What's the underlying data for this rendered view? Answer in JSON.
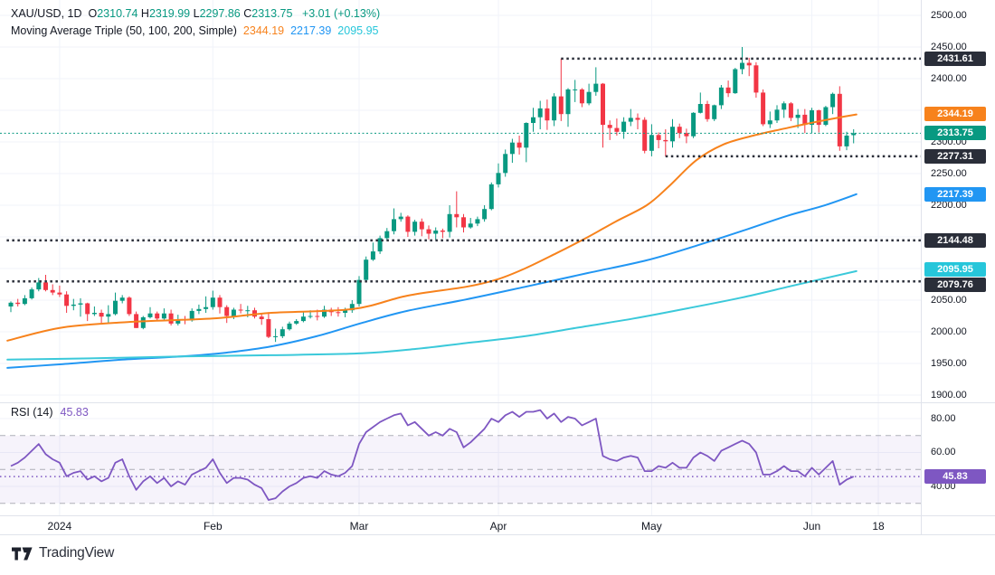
{
  "header": {
    "title": "XAU/USD, 1D",
    "ohlc": [
      {
        "k": "O",
        "v": "2310.74"
      },
      {
        "k": "H",
        "v": "2319.99"
      },
      {
        "k": "L",
        "v": "2297.86"
      },
      {
        "k": "C",
        "v": "2313.75"
      }
    ],
    "change": "+3.01 (+0.13%)"
  },
  "ma_legend": {
    "title": "Moving Average Triple (50, 100, 200, Simple)",
    "values": [
      {
        "v": "2344.19",
        "color": "#F7821C"
      },
      {
        "v": "2217.39",
        "color": "#2196F3"
      },
      {
        "v": "2095.95",
        "color": "#26C6DA"
      }
    ]
  },
  "rsi_legend": {
    "title": "RSI (14)",
    "value": "45.83"
  },
  "price_axis": {
    "ticks": [
      {
        "label": "2500.00",
        "price": 2500
      },
      {
        "label": "2450.00",
        "price": 2450
      },
      {
        "label": "2400.00",
        "price": 2400
      },
      {
        "label": "2300.00",
        "price": 2300
      },
      {
        "label": "2250.00",
        "price": 2250
      },
      {
        "label": "2200.00",
        "price": 2200
      },
      {
        "label": "2050.00",
        "price": 2050
      },
      {
        "label": "2000.00",
        "price": 2000
      },
      {
        "label": "1950.00",
        "price": 1950
      },
      {
        "label": "1900.00",
        "price": 1900
      }
    ],
    "badges": [
      {
        "label": "2431.61",
        "price": 2431.61,
        "bg": "#2A2E39",
        "dy": 0
      },
      {
        "label": "2344.19",
        "price": 2344.19,
        "bg": "#F7821C",
        "dy": 0
      },
      {
        "label": "2313.75",
        "price": 2313.75,
        "bg": "#089981",
        "dy": 0
      },
      {
        "label": "2277.31",
        "price": 2277.31,
        "bg": "#2A2E39",
        "dy": 0
      },
      {
        "label": "2217.39",
        "price": 2217.39,
        "bg": "#2196F3",
        "dy": 0
      },
      {
        "label": "2144.48",
        "price": 2144.48,
        "bg": "#2A2E39",
        "dy": 0
      },
      {
        "label": "2095.95",
        "price": 2095.95,
        "bg": "#26C6DA",
        "dy": -2
      },
      {
        "label": "2079.76",
        "price": 2079.76,
        "bg": "#2A2E39",
        "dy": 4
      }
    ],
    "rsi_ticks": [
      {
        "label": "80.00",
        "value": 80
      },
      {
        "label": "60.00",
        "value": 60
      },
      {
        "label": "40.00",
        "value": 40
      }
    ],
    "rsi_badge": {
      "label": "45.83",
      "value": 45.83,
      "bg": "#7E57C2"
    }
  },
  "time_axis": {
    "labels": [
      {
        "label": "2024",
        "index": 7
      },
      {
        "label": "Feb",
        "index": 29
      },
      {
        "label": "Mar",
        "index": 50
      },
      {
        "label": "Apr",
        "index": 70
      },
      {
        "label": "May",
        "index": 92
      },
      {
        "label": "Jun",
        "index": 115
      },
      {
        "label": "18",
        "x": 971
      }
    ]
  },
  "footer": {
    "logo_text": "TradingView"
  },
  "chart_data": {
    "type": "candlestick",
    "symbol": "XAU/USD",
    "interval": "1D",
    "title": "XAU/USD daily with Moving Average Triple (50,100,200) and RSI(14)",
    "ylim": [
      1880,
      2524
    ],
    "price_gridlines": [
      1900,
      1950,
      2000,
      2050,
      2100,
      2150,
      2200,
      2250,
      2300,
      2350,
      2400,
      2450,
      2500
    ],
    "up_color": "#089981",
    "down_color": "#F23645",
    "candles": [
      [
        2040,
        2048,
        2031,
        2046
      ],
      [
        2046,
        2052,
        2040,
        2044
      ],
      [
        2044,
        2058,
        2042,
        2053
      ],
      [
        2053,
        2070,
        2051,
        2067
      ],
      [
        2067,
        2085,
        2064,
        2078
      ],
      [
        2078,
        2090,
        2064,
        2066
      ],
      [
        2066,
        2075,
        2058,
        2062
      ],
      [
        2062,
        2073,
        2055,
        2059
      ],
      [
        2059,
        2064,
        2030,
        2041
      ],
      [
        2041,
        2052,
        2034,
        2043
      ],
      [
        2043,
        2053,
        2024,
        2045
      ],
      [
        2045,
        2046,
        2017,
        2028
      ],
      [
        2028,
        2040,
        2025,
        2030
      ],
      [
        2030,
        2035,
        2014,
        2024
      ],
      [
        2024,
        2042,
        2013,
        2028
      ],
      [
        2028,
        2062,
        2026,
        2049
      ],
      [
        2049,
        2058,
        2045,
        2054
      ],
      [
        2054,
        2056,
        2025,
        2028
      ],
      [
        2028,
        2032,
        2006,
        2006
      ],
      [
        2006,
        2025,
        2004,
        2023
      ],
      [
        2023,
        2039,
        2021,
        2029
      ],
      [
        2029,
        2032,
        2017,
        2021
      ],
      [
        2021,
        2037,
        2019,
        2029
      ],
      [
        2029,
        2035,
        2010,
        2013
      ],
      [
        2013,
        2027,
        2010,
        2020
      ],
      [
        2020,
        2025,
        2012,
        2018
      ],
      [
        2018,
        2037,
        2016,
        2033
      ],
      [
        2033,
        2043,
        2028,
        2036
      ],
      [
        2036,
        2056,
        2030,
        2039
      ],
      [
        2039,
        2065,
        2035,
        2054
      ],
      [
        2054,
        2058,
        2029,
        2039
      ],
      [
        2039,
        2042,
        2014,
        2025
      ],
      [
        2025,
        2038,
        2020,
        2035
      ],
      [
        2035,
        2044,
        2029,
        2034
      ],
      [
        2034,
        2041,
        2023,
        2034
      ],
      [
        2034,
        2038,
        2021,
        2024
      ],
      [
        2024,
        2030,
        2011,
        2020
      ],
      [
        2020,
        2031,
        1990,
        1992
      ],
      [
        1992,
        2005,
        1984,
        1993
      ],
      [
        1993,
        2008,
        1990,
        2004
      ],
      [
        2004,
        2016,
        2002,
        2013
      ],
      [
        2013,
        2020,
        2011,
        2017
      ],
      [
        2017,
        2031,
        2015,
        2024
      ],
      [
        2024,
        2034,
        2021,
        2025
      ],
      [
        2025,
        2035,
        2018,
        2024
      ],
      [
        2024,
        2041,
        2022,
        2035
      ],
      [
        2035,
        2038,
        2025,
        2031
      ],
      [
        2031,
        2039,
        2024,
        2030
      ],
      [
        2030,
        2038,
        2023,
        2034
      ],
      [
        2034,
        2050,
        2030,
        2044
      ],
      [
        2044,
        2088,
        2040,
        2082
      ],
      [
        2082,
        2119,
        2079,
        2114
      ],
      [
        2114,
        2141,
        2112,
        2127
      ],
      [
        2127,
        2152,
        2123,
        2148
      ],
      [
        2148,
        2164,
        2144,
        2159
      ],
      [
        2159,
        2195,
        2154,
        2178
      ],
      [
        2178,
        2188,
        2174,
        2182
      ],
      [
        2182,
        2184,
        2150,
        2158
      ],
      [
        2158,
        2177,
        2152,
        2174
      ],
      [
        2174,
        2179,
        2151,
        2162
      ],
      [
        2162,
        2168,
        2146,
        2155
      ],
      [
        2155,
        2165,
        2145,
        2160
      ],
      [
        2160,
        2163,
        2148,
        2158
      ],
      [
        2158,
        2200,
        2149,
        2186
      ],
      [
        2186,
        2222,
        2165,
        2181
      ],
      [
        2181,
        2186,
        2157,
        2165
      ],
      [
        2165,
        2180,
        2163,
        2171
      ],
      [
        2171,
        2182,
        2167,
        2178
      ],
      [
        2178,
        2200,
        2174,
        2194
      ],
      [
        2194,
        2236,
        2192,
        2233
      ],
      [
        2233,
        2266,
        2228,
        2251
      ],
      [
        2251,
        2288,
        2245,
        2281
      ],
      [
        2281,
        2305,
        2267,
        2299
      ],
      [
        2299,
        2310,
        2280,
        2291
      ],
      [
        2291,
        2331,
        2268,
        2330
      ],
      [
        2330,
        2354,
        2316,
        2339
      ],
      [
        2339,
        2365,
        2320,
        2353
      ],
      [
        2353,
        2367,
        2319,
        2334
      ],
      [
        2334,
        2377,
        2325,
        2372
      ],
      [
        2372,
        2431.61,
        2333,
        2344
      ],
      [
        2344,
        2385,
        2324,
        2383
      ],
      [
        2383,
        2398,
        2363,
        2383
      ],
      [
        2383,
        2385,
        2355,
        2361
      ],
      [
        2361,
        2392,
        2358,
        2379
      ],
      [
        2379,
        2418,
        2373,
        2392
      ],
      [
        2392,
        2393,
        2291,
        2327
      ],
      [
        2327,
        2334,
        2303,
        2322
      ],
      [
        2322,
        2337,
        2310,
        2316
      ],
      [
        2316,
        2339,
        2305,
        2332
      ],
      [
        2332,
        2352,
        2325,
        2338
      ],
      [
        2338,
        2345,
        2320,
        2335
      ],
      [
        2335,
        2339,
        2282,
        2286
      ],
      [
        2286,
        2328,
        2277.31,
        2311
      ],
      [
        2311,
        2315,
        2290,
        2303
      ],
      [
        2303,
        2320,
        2277,
        2301
      ],
      [
        2301,
        2336,
        2291,
        2324
      ],
      [
        2324,
        2329,
        2306,
        2314
      ],
      [
        2314,
        2321,
        2298,
        2309
      ],
      [
        2309,
        2347,
        2306,
        2346
      ],
      [
        2346,
        2378,
        2345,
        2360
      ],
      [
        2360,
        2365,
        2332,
        2336
      ],
      [
        2336,
        2359,
        2333,
        2358
      ],
      [
        2358,
        2390,
        2352,
        2386
      ],
      [
        2386,
        2397,
        2371,
        2377
      ],
      [
        2377,
        2417,
        2376,
        2415
      ],
      [
        2415,
        2450,
        2407,
        2425
      ],
      [
        2425,
        2433,
        2404,
        2421
      ],
      [
        2421,
        2426,
        2370,
        2378
      ],
      [
        2378,
        2383,
        2325,
        2328
      ],
      [
        2328,
        2348,
        2322,
        2334
      ],
      [
        2334,
        2358,
        2330,
        2351
      ],
      [
        2351,
        2364,
        2338,
        2361
      ],
      [
        2361,
        2363,
        2333,
        2338
      ],
      [
        2338,
        2352,
        2322,
        2343
      ],
      [
        2343,
        2352,
        2314,
        2327
      ],
      [
        2327,
        2354,
        2314,
        2350
      ],
      [
        2350,
        2351,
        2315,
        2327
      ],
      [
        2327,
        2357,
        2325,
        2355
      ],
      [
        2355,
        2378,
        2344,
        2376
      ],
      [
        2376,
        2388,
        2286,
        2293
      ],
      [
        2293,
        2316,
        2287,
        2310
      ],
      [
        2310.74,
        2319.99,
        2297.86,
        2313.75
      ]
    ],
    "moving_averages": [
      {
        "name": "SMA 50",
        "period": 50,
        "color": "#F7821C",
        "points": [
          [
            -0.5,
            1986
          ],
          [
            7.5,
            2007
          ],
          [
            17.9,
            2016
          ],
          [
            29,
            2021
          ],
          [
            37.4,
            2030
          ],
          [
            49.1,
            2036
          ],
          [
            56.9,
            2057
          ],
          [
            65.3,
            2071
          ],
          [
            69.9,
            2083
          ],
          [
            73.8,
            2100
          ],
          [
            78.3,
            2124
          ],
          [
            82.9,
            2150
          ],
          [
            86.8,
            2174
          ],
          [
            91.3,
            2200
          ],
          [
            94.5,
            2230
          ],
          [
            98.4,
            2271
          ],
          [
            102.3,
            2296
          ],
          [
            106.6,
            2310
          ],
          [
            111,
            2321
          ],
          [
            115.3,
            2331
          ],
          [
            119.6,
            2340
          ],
          [
            121.4,
            2343.5
          ]
        ]
      },
      {
        "name": "SMA 100",
        "period": 100,
        "color": "#2196F3",
        "points": [
          [
            -0.5,
            1943
          ],
          [
            7.5,
            1949
          ],
          [
            16,
            1956
          ],
          [
            24.4,
            1961
          ],
          [
            30.9,
            1967
          ],
          [
            37.4,
            1977
          ],
          [
            43.9,
            1993
          ],
          [
            50.4,
            2014
          ],
          [
            56.9,
            2033
          ],
          [
            65.3,
            2051
          ],
          [
            73.8,
            2071
          ],
          [
            82.9,
            2093
          ],
          [
            91.3,
            2113
          ],
          [
            98.4,
            2136
          ],
          [
            104.9,
            2159
          ],
          [
            111.4,
            2183
          ],
          [
            116.6,
            2199
          ],
          [
            121.4,
            2217.4
          ]
        ]
      },
      {
        "name": "SMA 200",
        "period": 200,
        "color": "#3BC9DA",
        "points": [
          [
            -0.5,
            1956
          ],
          [
            11.4,
            1958
          ],
          [
            24.4,
            1961
          ],
          [
            37.4,
            1963
          ],
          [
            50.4,
            1966
          ],
          [
            58.2,
            1973
          ],
          [
            66,
            1983
          ],
          [
            73.8,
            1993
          ],
          [
            81.6,
            2007
          ],
          [
            89.4,
            2021
          ],
          [
            97.1,
            2037
          ],
          [
            104.9,
            2054
          ],
          [
            112.7,
            2074
          ],
          [
            121.4,
            2095.9
          ]
        ]
      }
    ],
    "levels": [
      {
        "label": "2431.61",
        "price": 2431.61,
        "start_index": 79
      },
      {
        "label": "2277.31",
        "price": 2277.31,
        "start_index": 94
      },
      {
        "label": "2144.48",
        "price": 2144.48,
        "start_index": -0.6
      },
      {
        "label": "2079.76",
        "price": 2079.76,
        "start_index": -0.6
      }
    ],
    "last_price": {
      "value": 2313.75,
      "color": "#089981"
    },
    "rsi": {
      "period": 14,
      "color": "#7E57C2",
      "current": 45.83,
      "band": [
        30,
        70
      ],
      "midline": 50,
      "gridlines": [
        80,
        60,
        40
      ],
      "values": [
        52,
        54,
        57,
        61,
        65,
        59,
        56,
        54,
        46,
        48,
        49,
        44,
        46,
        43,
        45,
        54,
        56,
        46,
        38,
        43,
        46,
        42,
        45,
        40,
        43,
        41,
        47,
        49,
        51,
        56,
        48,
        42,
        45,
        45,
        44,
        41,
        39,
        32,
        33,
        37,
        40,
        42,
        45,
        46,
        45,
        49,
        47,
        46,
        48,
        52,
        65,
        72,
        75,
        78,
        80,
        82,
        83,
        76,
        78,
        74,
        70,
        72,
        70,
        74,
        72,
        63,
        66,
        70,
        74,
        80,
        78,
        82,
        84,
        81,
        84,
        84,
        85,
        80,
        83,
        78,
        81,
        80,
        76,
        78,
        80,
        58,
        56,
        55,
        57,
        58,
        57,
        49,
        49,
        52,
        51,
        54,
        51,
        51,
        57,
        60,
        58,
        55,
        61,
        63,
        65,
        67,
        65,
        60,
        47,
        47,
        49,
        52,
        49,
        49,
        46,
        51,
        47,
        51,
        55,
        41,
        44,
        45.83
      ]
    }
  }
}
